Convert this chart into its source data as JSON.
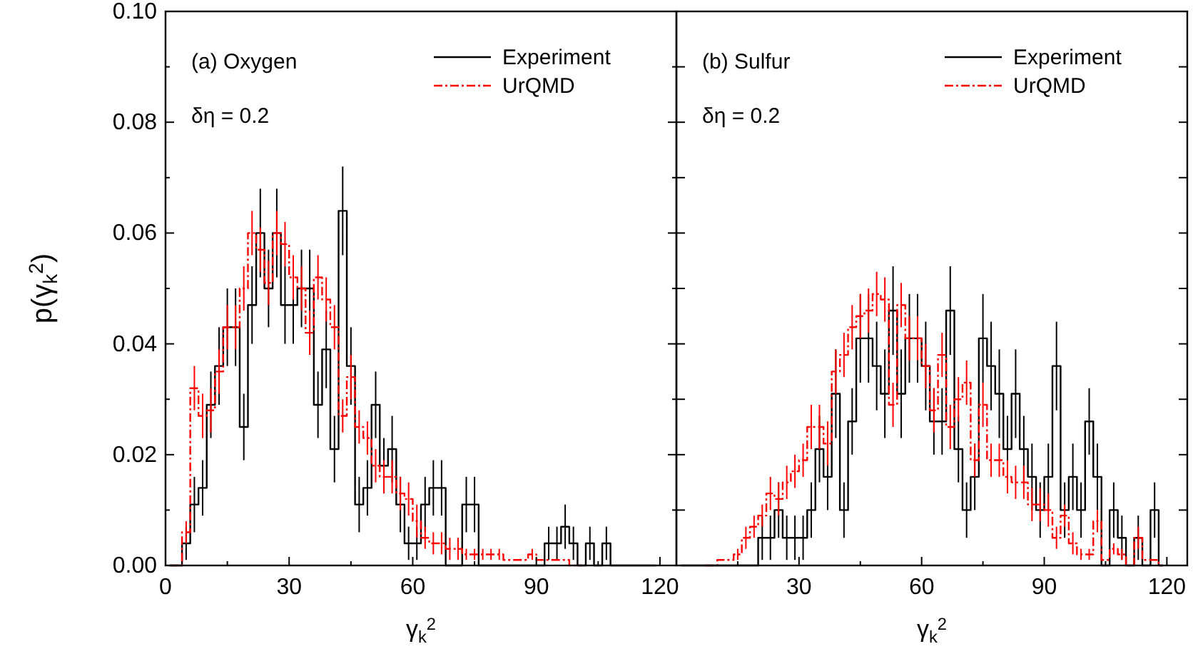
{
  "chart_data": [
    {
      "type": "step",
      "ylabel": "p(γ$_{k}$$^{2}$)",
      "xlabel": "γ$_{k}$$^{2}$",
      "xlim": [
        0,
        124
      ],
      "ylim": [
        0,
        0.1
      ],
      "marker": "none",
      "xticks": [
        0,
        {
          "value": 15,
          "label": null
        },
        30,
        {
          "value": 45,
          "label": null
        },
        60,
        {
          "value": 75,
          "label": null
        },
        90,
        {
          "value": 105,
          "label": null
        },
        120
      ],
      "yticks": [
        {
          "value": 0,
          "label": "0.00"
        },
        {
          "value": 0.01,
          "label": null
        },
        {
          "value": 0.02,
          "label": "0.02"
        },
        {
          "value": 0.03,
          "label": null
        },
        {
          "value": 0.04,
          "label": "0.04"
        },
        {
          "value": 0.05,
          "label": null
        },
        {
          "value": 0.06,
          "label": "0.06"
        },
        {
          "value": 0.07,
          "label": null
        },
        {
          "value": 0.08,
          "label": "0.08"
        },
        {
          "value": 0.09,
          "label": null
        },
        {
          "value": 0.1,
          "label": "0.10"
        }
      ],
      "legend": "top right",
      "annotations": [
        "(a) Oxygen",
        "δη = 0.2"
      ],
      "x": [
        1,
        3,
        5,
        7,
        9,
        11,
        13,
        15,
        17,
        19,
        21,
        23,
        25,
        27,
        29,
        31,
        33,
        35,
        37,
        39,
        41,
        43,
        45,
        47,
        49,
        51,
        53,
        55,
        57,
        59,
        61,
        63,
        65,
        67,
        69,
        71,
        73,
        75,
        77,
        79,
        81,
        83,
        85,
        87,
        89,
        91,
        93,
        95,
        97,
        99,
        101,
        103,
        105,
        107,
        109,
        111,
        113,
        115,
        117,
        119
      ],
      "series": [
        {
          "name": "Experiment",
          "color": "#000000",
          "line_style": "solid",
          "values": [
            0,
            0,
            0.004,
            0.011,
            0.014,
            0.029,
            0.036,
            0.043,
            0.043,
            0.025,
            0.047,
            0.06,
            0.05,
            0.06,
            0.047,
            0.047,
            0.05,
            0.05,
            0.029,
            0.039,
            0.021,
            0.064,
            0.036,
            0.011,
            0.014,
            0.029,
            0.018,
            0.021,
            0.011,
            0.004,
            0.004,
            0.011,
            0.014,
            0.014,
            0,
            0,
            0.011,
            0.011,
            0,
            0,
            0,
            0,
            0,
            0,
            0,
            0,
            0.004,
            0.004,
            0.007,
            0.004,
            0,
            0.004,
            0,
            0.004,
            0,
            0,
            0,
            0,
            0,
            0
          ],
          "errors": [
            null,
            null,
            0.003,
            0.005,
            0.005,
            0.006,
            0.007,
            0.007,
            0.007,
            0.006,
            0.007,
            0.008,
            0.007,
            0.008,
            0.007,
            0.007,
            0.007,
            0.007,
            0.006,
            0.007,
            0.006,
            0.008,
            0.007,
            0.005,
            0.005,
            0.006,
            0.005,
            0.006,
            0.005,
            0.003,
            0.003,
            0.005,
            0.005,
            0.005,
            null,
            null,
            0.005,
            0.005,
            null,
            null,
            null,
            null,
            null,
            null,
            null,
            null,
            0.003,
            0.003,
            0.004,
            0.003,
            null,
            0.003,
            null,
            0.003,
            null,
            null,
            null,
            null,
            null,
            null
          ]
        },
        {
          "name": "UrQMD",
          "color": "#ff0000",
          "line_style": "dashed",
          "values": [
            0,
            0,
            0.006,
            0.032,
            0.027,
            0.028,
            0.035,
            0.043,
            0.043,
            0.05,
            0.06,
            0.057,
            0.051,
            0.06,
            0.058,
            0.052,
            0.05,
            0.042,
            0.052,
            0.048,
            0.043,
            0.027,
            0.034,
            0.025,
            0.023,
            0.018,
            0.016,
            0.016,
            0.013,
            0.012,
            0.008,
            0.005,
            0.004,
            0.004,
            0.003,
            0.003,
            0.002,
            0.002,
            0.002,
            0.002,
            0.002,
            0.001,
            0.001,
            0.001,
            0.002,
            0.001,
            0.001,
            0.001,
            0.001,
            0,
            0,
            null,
            null,
            null,
            null,
            null,
            null,
            null,
            null,
            null
          ],
          "errors": [
            null,
            null,
            0.002,
            0.004,
            0.004,
            0.004,
            0.004,
            0.004,
            0.004,
            0.004,
            0.004,
            0.004,
            0.004,
            0.004,
            0.004,
            0.004,
            0.004,
            0.004,
            0.004,
            0.004,
            0.004,
            0.003,
            0.004,
            0.003,
            0.003,
            0.003,
            0.003,
            0.003,
            0.003,
            0.003,
            0.003,
            0.002,
            0.002,
            0.002,
            0.002,
            0.002,
            0.001,
            0.001,
            0.001,
            0.001,
            0.001,
            null,
            null,
            null,
            0.001,
            null,
            null,
            null,
            null,
            null,
            null,
            null,
            null,
            null,
            null,
            null,
            null,
            null,
            null,
            null
          ]
        }
      ]
    },
    {
      "type": "step",
      "xlabel": "γ$_{k}$$^{2}$",
      "xlim": [
        0,
        125
      ],
      "ylim": [
        0,
        0.1
      ],
      "tick_labels": "x",
      "marker": "none",
      "xticks": [
        {
          "value": 0,
          "label": null
        },
        {
          "value": 15,
          "label": null
        },
        30,
        {
          "value": 45,
          "label": null
        },
        60,
        {
          "value": 75,
          "label": null
        },
        90,
        {
          "value": 105,
          "label": null
        },
        120
      ],
      "yticks": [
        0,
        0.01,
        0.02,
        0.03,
        0.04,
        0.05,
        0.06,
        0.07,
        0.08,
        0.09,
        0.1
      ],
      "legend": "top right",
      "annotations": [
        "(b) Sulfur",
        "δη = 0.2"
      ],
      "x": [
        1,
        3,
        5,
        7,
        9,
        11,
        13,
        15,
        17,
        19,
        21,
        23,
        25,
        27,
        29,
        31,
        33,
        35,
        37,
        39,
        41,
        43,
        45,
        47,
        49,
        51,
        53,
        55,
        57,
        59,
        61,
        63,
        65,
        67,
        69,
        71,
        73,
        75,
        77,
        79,
        81,
        83,
        85,
        87,
        89,
        91,
        93,
        95,
        97,
        99,
        101,
        103,
        105,
        107,
        109,
        111,
        113,
        115,
        117,
        119
      ],
      "series": [
        {
          "name": "Experiment",
          "color": "#000000",
          "line_style": "solid",
          "values": [
            0,
            0,
            0,
            0,
            0,
            0,
            0,
            0,
            0,
            0,
            0.005,
            0.005,
            0.01,
            0.005,
            0.005,
            0.005,
            0.01,
            0.021,
            0.016,
            0.031,
            0.01,
            0.026,
            0.041,
            0.041,
            0.036,
            0.031,
            0.046,
            0.031,
            0.041,
            0.041,
            0.036,
            0.026,
            0.026,
            0.046,
            0.021,
            0.01,
            0.016,
            0.041,
            0.036,
            0.031,
            0.021,
            0.031,
            0.021,
            0.016,
            0.01,
            0.016,
            0.036,
            0.01,
            0.016,
            0.01,
            0.026,
            0.016,
            0,
            0.01,
            0.005,
            0,
            0.005,
            0,
            0.01,
            0
          ],
          "errors": [
            null,
            null,
            null,
            null,
            null,
            null,
            null,
            null,
            null,
            null,
            0.004,
            0.004,
            0.005,
            0.004,
            0.004,
            0.004,
            0.005,
            0.006,
            0.006,
            0.008,
            0.005,
            0.006,
            0.008,
            0.008,
            0.008,
            0.008,
            0.008,
            0.008,
            0.008,
            0.008,
            0.008,
            0.006,
            0.006,
            0.008,
            0.006,
            0.005,
            0.006,
            0.008,
            0.008,
            0.008,
            0.006,
            0.008,
            0.006,
            0.006,
            0.005,
            0.006,
            0.008,
            0.005,
            0.006,
            0.005,
            0.006,
            0.006,
            null,
            0.005,
            0.004,
            null,
            0.004,
            null,
            0.005,
            null
          ]
        },
        {
          "name": "UrQMD",
          "color": "#ff0000",
          "line_style": "dashed",
          "values": [
            null,
            null,
            null,
            0,
            0,
            0.001,
            0.001,
            0.002,
            0.005,
            0.007,
            0.009,
            0.013,
            0.012,
            0.015,
            0.017,
            0.019,
            0.025,
            0.025,
            0.022,
            0.035,
            0.038,
            0.043,
            0.045,
            0.046,
            0.049,
            0.048,
            0.029,
            0.047,
            0.041,
            0.041,
            0.036,
            0.028,
            0.038,
            0.025,
            0.03,
            0.033,
            0.019,
            0.029,
            0.019,
            0.019,
            0.016,
            0.015,
            0.015,
            0.011,
            0.011,
            0.01,
            0.005,
            0.009,
            0.004,
            0.002,
            0.002,
            0.008,
            0.001,
            0.003,
            0.002,
            0,
            0.005,
            0.001,
            0.001,
            0
          ],
          "errors": [
            null,
            null,
            null,
            null,
            null,
            null,
            null,
            0.001,
            0.002,
            0.002,
            0.002,
            0.003,
            0.003,
            0.003,
            0.003,
            0.003,
            0.004,
            0.004,
            0.004,
            0.004,
            0.004,
            0.004,
            0.004,
            0.004,
            0.004,
            0.004,
            0.004,
            0.004,
            0.004,
            0.004,
            0.004,
            0.004,
            0.004,
            0.004,
            0.004,
            0.004,
            0.003,
            0.004,
            0.003,
            0.003,
            0.003,
            0.003,
            0.003,
            0.003,
            0.003,
            0.003,
            0.002,
            0.002,
            0.002,
            0.001,
            0.001,
            0.002,
            null,
            0.001,
            0.001,
            null,
            0.002,
            null,
            null,
            null
          ]
        }
      ]
    }
  ]
}
